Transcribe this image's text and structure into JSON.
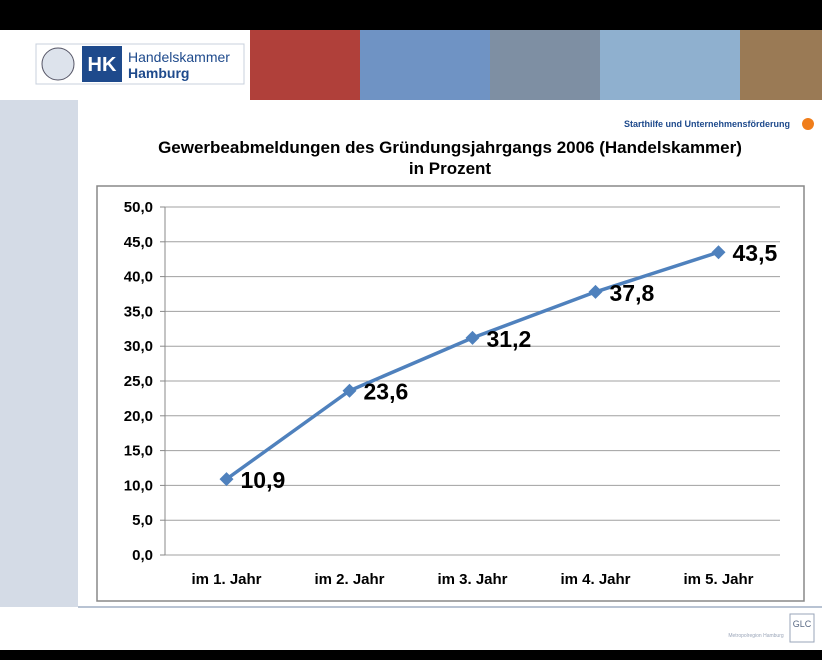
{
  "header": {
    "logo_short": "HK",
    "logo_line1": "Handelskammer",
    "logo_line2": "Hamburg",
    "section": "Starthilfe und Unternehmensförderung"
  },
  "footer": {
    "left_logo": "Metropolregion Hamburg",
    "right_logo": "GLC"
  },
  "chart_data": {
    "type": "line",
    "title": "Gewerbeabmeldungen des Gründungsjahrgangs 2006 (Handelskammer)",
    "subtitle": "in Prozent",
    "categories": [
      "im 1. Jahr",
      "im 2. Jahr",
      "im 3. Jahr",
      "im 4. Jahr",
      "im 5. Jahr"
    ],
    "values": [
      10.9,
      23.6,
      31.2,
      37.8,
      43.5
    ],
    "value_labels": [
      "10,9",
      "23,6",
      "31,2",
      "37,8",
      "43,5"
    ],
    "color": "#4f81bd",
    "ylim": [
      0,
      50
    ],
    "yticks": [
      {
        "value": 0,
        "label": "0,0"
      },
      {
        "value": 5,
        "label": "5,0"
      },
      {
        "value": 10,
        "label": "10,0"
      },
      {
        "value": 15,
        "label": "15,0"
      },
      {
        "value": 20,
        "label": "20,0"
      },
      {
        "value": 25,
        "label": "25,0"
      },
      {
        "value": 30,
        "label": "30,0"
      },
      {
        "value": 35,
        "label": "35,0"
      },
      {
        "value": 40,
        "label": "40,0"
      },
      {
        "value": 45,
        "label": "45,0"
      },
      {
        "value": 50,
        "label": "50,0"
      }
    ],
    "grid": true
  }
}
